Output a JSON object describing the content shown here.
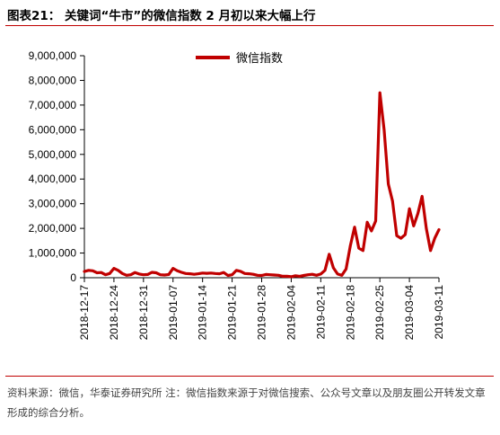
{
  "figure": {
    "title": "图表21：  关键词“牛市”的微信指数 2 月初以来大幅上行",
    "source": "资料来源：微信，华泰证券研究所  注：微信指数来源于对微信搜索、公众号文章以及朋友圈公开转发文章形成的综合分析。"
  },
  "colors": {
    "accent": "#c00000",
    "series": "#c00000",
    "axis": "#000000"
  },
  "chart_data": {
    "type": "line",
    "title": "",
    "xlabel": "",
    "ylabel": "",
    "ylim": [
      0,
      9000000
    ],
    "yticks": [
      0,
      1000000,
      2000000,
      3000000,
      4000000,
      5000000,
      6000000,
      7000000,
      8000000,
      9000000
    ],
    "ytick_labels": [
      "0",
      "1,000,000",
      "2,000,000",
      "3,000,000",
      "4,000,000",
      "5,000,000",
      "6,000,000",
      "7,000,000",
      "8,000,000",
      "9,000,000"
    ],
    "xlim": [
      "2018-12-17",
      "2019-03-11"
    ],
    "xtick_labels": [
      "2018-12-17",
      "2018-12-24",
      "2018-12-31",
      "2019-01-07",
      "2019-01-14",
      "2019-01-21",
      "2019-01-28",
      "2019-02-04",
      "2019-02-11",
      "2019-02-18",
      "2019-02-25",
      "2019-03-04",
      "2019-03-11"
    ],
    "grid": false,
    "legend": "top-center",
    "series": [
      {
        "name": "微信指数",
        "color": "#c00000",
        "x": [
          "2018-12-17",
          "2018-12-18",
          "2018-12-19",
          "2018-12-20",
          "2018-12-21",
          "2018-12-22",
          "2018-12-23",
          "2018-12-24",
          "2018-12-25",
          "2018-12-26",
          "2018-12-27",
          "2018-12-28",
          "2018-12-29",
          "2018-12-30",
          "2018-12-31",
          "2019-01-01",
          "2019-01-02",
          "2019-01-03",
          "2019-01-04",
          "2019-01-05",
          "2019-01-06",
          "2019-01-07",
          "2019-01-08",
          "2019-01-09",
          "2019-01-10",
          "2019-01-11",
          "2019-01-12",
          "2019-01-13",
          "2019-01-14",
          "2019-01-15",
          "2019-01-16",
          "2019-01-17",
          "2019-01-18",
          "2019-01-19",
          "2019-01-20",
          "2019-01-21",
          "2019-01-22",
          "2019-01-23",
          "2019-01-24",
          "2019-01-25",
          "2019-01-26",
          "2019-01-27",
          "2019-01-28",
          "2019-01-29",
          "2019-01-30",
          "2019-01-31",
          "2019-02-01",
          "2019-02-02",
          "2019-02-03",
          "2019-02-04",
          "2019-02-05",
          "2019-02-06",
          "2019-02-07",
          "2019-02-08",
          "2019-02-09",
          "2019-02-10",
          "2019-02-11",
          "2019-02-12",
          "2019-02-13",
          "2019-02-14",
          "2019-02-15",
          "2019-02-16",
          "2019-02-17",
          "2019-02-18",
          "2019-02-19",
          "2019-02-20",
          "2019-02-21",
          "2019-02-22",
          "2019-02-23",
          "2019-02-24",
          "2019-02-25",
          "2019-02-26",
          "2019-02-27",
          "2019-02-28",
          "2019-03-01",
          "2019-03-02",
          "2019-03-03",
          "2019-03-04",
          "2019-03-05",
          "2019-03-06",
          "2019-03-07",
          "2019-03-08",
          "2019-03-09",
          "2019-03-10",
          "2019-03-11"
        ],
        "values": [
          250000,
          300000,
          280000,
          200000,
          210000,
          120000,
          170000,
          380000,
          300000,
          170000,
          100000,
          120000,
          210000,
          150000,
          120000,
          130000,
          220000,
          200000,
          120000,
          110000,
          130000,
          380000,
          280000,
          220000,
          170000,
          160000,
          140000,
          160000,
          190000,
          180000,
          190000,
          170000,
          160000,
          210000,
          90000,
          120000,
          300000,
          260000,
          170000,
          160000,
          140000,
          100000,
          90000,
          130000,
          120000,
          110000,
          100000,
          60000,
          60000,
          40000,
          80000,
          60000,
          90000,
          120000,
          140000,
          100000,
          150000,
          300000,
          950000,
          400000,
          150000,
          100000,
          350000,
          1300000,
          2050000,
          1200000,
          1100000,
          2250000,
          1900000,
          2300000,
          7500000,
          6000000,
          3800000,
          3100000,
          1700000,
          1600000,
          1750000,
          2800000,
          2100000,
          2600000,
          3300000,
          2000000,
          1100000,
          1600000,
          1950000
        ]
      }
    ]
  }
}
